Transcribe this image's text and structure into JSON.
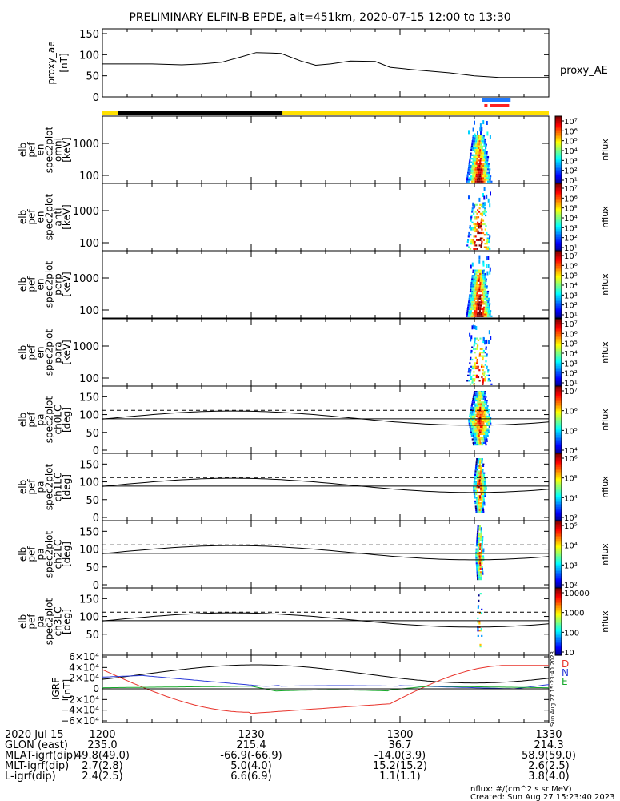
{
  "title": "PRELIMINARY ELFIN-B EPDE, alt=451km, 2020-07-15 12:00 to 13:30",
  "colors": {
    "sci_zone": "#ffe000",
    "shadow_bar": "#000000",
    "blue_bar": "#1e78ff",
    "red_bar": "#ff2020",
    "geo_x": "#e8322a",
    "geo_y": "#2a3ad8",
    "geo_z": "#16a82a",
    "geo_t": "#000000"
  },
  "chart_data": {
    "type": "line",
    "x_label_row_title": "2020 Jul 15",
    "x_ticks": [
      "1200",
      "1230",
      "1300",
      "1330"
    ],
    "x_minor_step_min": 5,
    "xlim_min": [
      0,
      90
    ],
    "ae": {
      "ylabel": "proxy_ae",
      "yunit": "[nT]",
      "legend": "proxy_AE",
      "ylim": [
        0,
        150
      ],
      "yticks": [
        "150",
        "100",
        "50",
        "0"
      ],
      "t": [
        0,
        10,
        16,
        20,
        24,
        28,
        31,
        34,
        36,
        40,
        43,
        46,
        50,
        55,
        58,
        63,
        70,
        75,
        80,
        90
      ],
      "v": [
        78,
        78,
        76,
        78,
        82,
        95,
        105,
        104,
        103,
        85,
        75,
        78,
        85,
        84,
        70,
        64,
        57,
        50,
        46,
        46
      ]
    },
    "status_bars": [
      {
        "name": "blue",
        "t": [
          76.5,
          82.3
        ]
      },
      {
        "name": "red",
        "t": [
          77.0,
          82.0
        ]
      },
      {
        "name": "shadow",
        "t": [
          3.2,
          36.3
        ]
      }
    ],
    "spectra": [
      {
        "label": "elb pef en spec2plot omni [keV]",
        "yticks": [
          "1000",
          "100"
        ],
        "cb_ticks": [
          "10⁷",
          "10⁶",
          "10⁵",
          "10⁴",
          "10³",
          "10²",
          "10¹"
        ],
        "cb_label": "nflux"
      },
      {
        "label": "elb pef en spec2plot anti [keV]",
        "yticks": [
          "1000",
          "100"
        ],
        "cb_ticks": [
          "10⁷",
          "10⁶",
          "10⁵",
          "10⁴",
          "10³",
          "10²",
          "10¹"
        ],
        "cb_label": "nflux"
      },
      {
        "label": "elb pef en spec2plot perp [keV]",
        "yticks": [
          "1000",
          "100"
        ],
        "cb_ticks": [
          "10⁷",
          "10⁶",
          "10⁵",
          "10⁴",
          "10³",
          "10²",
          "10¹"
        ],
        "cb_label": "nflux"
      },
      {
        "label": "elb pef en spec2plot para [keV]",
        "yticks": [
          "1000",
          "100"
        ],
        "cb_ticks": [
          "10⁷",
          "10⁶",
          "10⁵",
          "10⁴",
          "10³",
          "10²",
          "10¹"
        ],
        "cb_label": "nflux"
      }
    ],
    "pitch": [
      {
        "label": "elb pef pa spec2plot ch0LC [deg]",
        "yticks": [
          "150",
          "100",
          "50",
          "0"
        ],
        "cb_ticks": [
          "10⁷",
          "10⁶",
          "10⁵",
          "10⁴"
        ],
        "cb_label": "nflux"
      },
      {
        "label": "elb pef pa spec2plot ch1LC [deg]",
        "yticks": [
          "150",
          "100",
          "50",
          "0"
        ],
        "cb_ticks": [
          "10⁶",
          "10⁵",
          "10⁴",
          "10³"
        ],
        "cb_label": "nflux"
      },
      {
        "label": "elb pef pa spec2plot ch2LC [deg]",
        "yticks": [
          "150",
          "100",
          "50",
          "0"
        ],
        "cb_ticks": [
          "10⁵",
          "10⁴",
          "10³",
          "10²"
        ],
        "cb_label": "nflux"
      },
      {
        "label": "elb pef pa spec2plot ch3LC [deg]",
        "yticks": [
          "150",
          "100",
          "50"
        ],
        "cb_ticks": [
          "10000",
          "1000",
          "100",
          "10"
        ],
        "cb_label": "nflux"
      }
    ],
    "geo": {
      "ylabel": "IGRF",
      "yunit": "[nT]",
      "yticks": [
        "6×10⁴",
        "4×10⁴",
        "2×10⁴",
        "0",
        "−2×10⁴",
        "−4×10⁴",
        "−6×10⁴"
      ],
      "legend": [
        "D",
        "N",
        "E"
      ],
      "side_note": "Sun Aug 27 15:23:40 2023"
    },
    "ephemeris": {
      "rows": [
        {
          "label": "GLON (east)",
          "values": [
            "235.0",
            "215.4",
            "36.7",
            "214.3"
          ]
        },
        {
          "label": "MLAT-igrf(dip)",
          "values": [
            "49.8(49.0)",
            "-66.9(-66.9)",
            "-14.0(3.9)",
            "58.9(59.0)"
          ]
        },
        {
          "label": "MLT-igrf(dip)",
          "values": [
            "2.7(2.8)",
            "5.0(4.0)",
            "15.2(15.2)",
            "2.6(2.5)"
          ]
        },
        {
          "label": "L-igrf(dip)",
          "values": [
            "2.4(2.5)",
            "6.6(6.9)",
            "1.1(1.1)",
            "3.8(4.0)"
          ]
        }
      ]
    }
  },
  "footer": {
    "units": "nflux: #/(cm^2 s sr MeV)",
    "created": "Created: Sun Aug 27 15:23:40 2023"
  }
}
